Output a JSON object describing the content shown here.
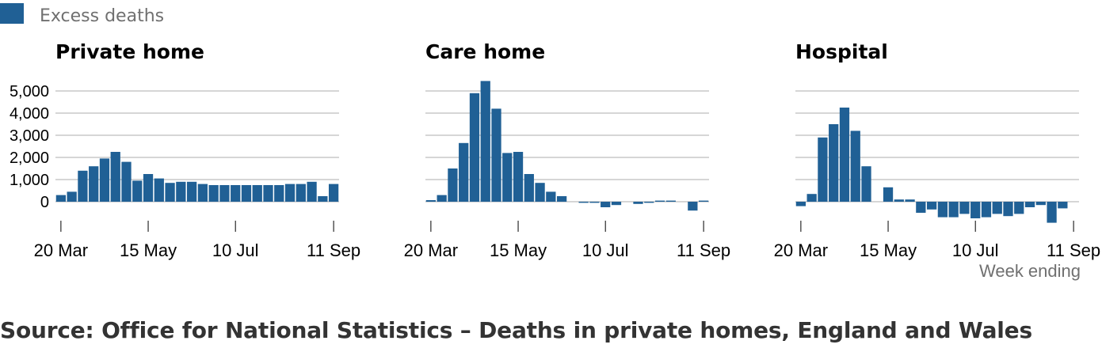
{
  "legend": {
    "label": "Excess deaths",
    "color": "#206095"
  },
  "source": "Source: Office for National Statistics – Deaths in private homes, England and Wales",
  "colors": {
    "bar": "#206095",
    "grid": "#c8c8c8",
    "axis": "#000000",
    "muted": "#707070"
  },
  "chart_data": {
    "type": "bar",
    "x": [
      "20 Mar",
      "27 Mar",
      "3 Apr",
      "10 Apr",
      "17 Apr",
      "24 Apr",
      "1 May",
      "8 May",
      "15 May",
      "22 May",
      "29 May",
      "5 Jun",
      "12 Jun",
      "19 Jun",
      "26 Jun",
      "3 Jul",
      "10 Jul",
      "17 Jul",
      "24 Jul",
      "31 Jul",
      "7 Aug",
      "14 Aug",
      "21 Aug",
      "28 Aug",
      "4 Sep",
      "11 Sep"
    ],
    "x_ticks": [
      "20 Mar",
      "15 May",
      "10 Jul",
      "11 Sep"
    ],
    "xlabel": "Week ending",
    "ylabel": "",
    "y_ticks": [
      0,
      1000,
      2000,
      3000,
      4000,
      5000
    ],
    "y_tick_labels": [
      "0",
      "1,000",
      "2,000",
      "3,000",
      "4,000",
      "5,000"
    ],
    "ylim": [
      -1200,
      5500
    ],
    "legend_position": "top-left",
    "grid": true,
    "panels": [
      {
        "title": "Private home",
        "values": [
          300,
          450,
          1400,
          1600,
          1950,
          2250,
          1800,
          950,
          1250,
          1050,
          850,
          900,
          900,
          800,
          750,
          750,
          750,
          750,
          750,
          750,
          750,
          800,
          800,
          900,
          250,
          800
        ]
      },
      {
        "title": "Care home",
        "values": [
          70,
          300,
          1500,
          2650,
          4900,
          5450,
          4200,
          2200,
          2250,
          1250,
          850,
          450,
          250,
          0,
          -50,
          -50,
          -250,
          -150,
          0,
          -100,
          -50,
          50,
          50,
          0,
          -400,
          50
        ]
      },
      {
        "title": "Hospital",
        "values": [
          -200,
          350,
          2900,
          3500,
          4250,
          3200,
          1600,
          0,
          650,
          100,
          100,
          -500,
          -350,
          -700,
          -700,
          -550,
          -750,
          -700,
          -550,
          -650,
          -550,
          -250,
          -150,
          -950,
          -300,
          0
        ]
      }
    ]
  }
}
